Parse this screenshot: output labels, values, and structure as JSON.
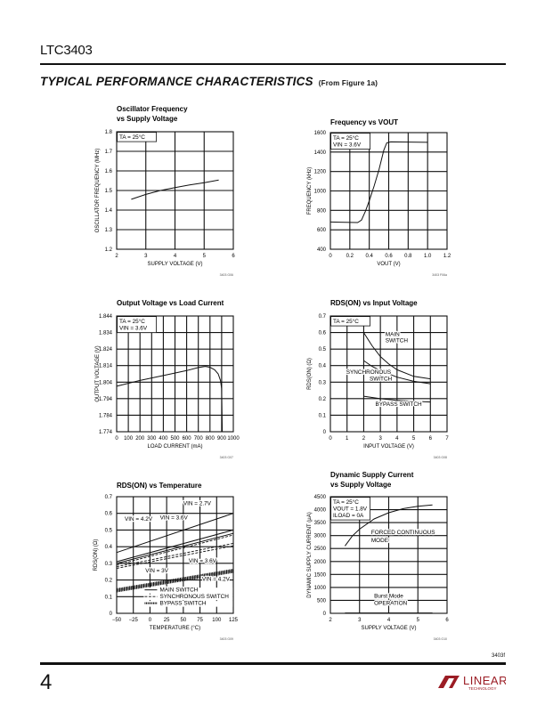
{
  "header": {
    "part": "LTC3403",
    "section_title": "TYPICAL PERFORMANCE CHARACTERISTICS",
    "section_note": "(From Figure 1a)"
  },
  "footer": {
    "page_number": "4",
    "doc_code": "3403f",
    "logo_text": "LINEAR TECHNOLOGY"
  },
  "colors": {
    "ink": "#111111",
    "logo": "#9b1c24"
  },
  "chart_data": [
    {
      "type": "line",
      "title": [
        {
          "text": "Oscillator Frequency"
        },
        {
          "text": "vs Supply Voltage"
        }
      ],
      "xlabel": {
        "text": "SUPPLY VOLTAGE (V)"
      },
      "ylabel": {
        "text": "OSCILLATOR FREQUENCY (MHz)"
      },
      "xlim": [
        2,
        6
      ],
      "ylim": [
        1.2,
        1.8
      ],
      "xticks": [
        "2",
        "3",
        "4",
        "5",
        "6"
      ],
      "yticks": [
        "1.2",
        "1.3",
        "1.4",
        "1.5",
        "1.6",
        "1.7",
        "1.8"
      ],
      "grid": true,
      "series": [
        {
          "x": [
            2.5,
            3,
            3.5,
            4,
            4.5,
            5,
            5.5
          ],
          "y": [
            1.455,
            1.48,
            1.5,
            1.515,
            1.528,
            1.54,
            1.553
          ],
          "style": "solid"
        }
      ],
      "annotations": [
        {
          "text": "TA = 25°C",
          "sub": "A"
        }
      ],
      "code": "3403 G06"
    },
    {
      "type": "line",
      "title": [
        {
          "text": "Frequency vs VOUT",
          "sub": "OUT"
        }
      ],
      "xlabel": {
        "text": "VOUT (V)",
        "sub": "OUT"
      },
      "ylabel": {
        "text": "FREQUENCY (kHz)"
      },
      "xlim": [
        0,
        1.2
      ],
      "ylim": [
        400,
        1600
      ],
      "xticks": [
        "0",
        "0.2",
        "0.4",
        "0.6",
        "0.8",
        "1.0",
        "1.2"
      ],
      "yticks": [
        "400",
        "600",
        "800",
        "1000",
        "1200",
        "1400",
        "1600"
      ],
      "grid": true,
      "series": [
        {
          "x": [
            0,
            0.28,
            0.32,
            0.36,
            0.4,
            0.45,
            0.5,
            0.55,
            0.58,
            0.62,
            1.0
          ],
          "y": [
            680,
            675,
            700,
            790,
            900,
            1050,
            1220,
            1420,
            1495,
            1505,
            1500
          ],
          "style": "solid"
        }
      ],
      "annotations": [
        {
          "text": "TA = 25°C",
          "sub": "A"
        },
        {
          "text": "VIN = 3.6V",
          "sub": "IN"
        }
      ],
      "code": "3403 F06a"
    },
    {
      "type": "line",
      "title": [
        {
          "text": "Output Voltage vs Load Current"
        }
      ],
      "xlabel": {
        "text": "LOAD CURRENT (mA)"
      },
      "ylabel": {
        "text": "OUTPUT VOLTAGE (V)"
      },
      "xlim": [
        0,
        1000
      ],
      "ylim": [
        1.774,
        1.844
      ],
      "xticks": [
        "0",
        "100",
        "200",
        "300",
        "400",
        "500",
        "600",
        "700",
        "800",
        "900",
        "1000"
      ],
      "yticks": [
        "1.774",
        "1.784",
        "1.794",
        "1.804",
        "1.814",
        "1.824",
        "1.834",
        "1.844"
      ],
      "grid": true,
      "series": [
        {
          "x": [
            0,
            200,
            400,
            600,
            700,
            760,
            800,
            840,
            870,
            890,
            900,
            905
          ],
          "y": [
            1.8015,
            1.805,
            1.808,
            1.811,
            1.8128,
            1.8135,
            1.813,
            1.8115,
            1.809,
            1.805,
            1.8,
            1.774
          ],
          "style": "solid"
        }
      ],
      "annotations": [
        {
          "text": "TA = 25°C",
          "sub": "A"
        },
        {
          "text": "VIN = 3.6V",
          "sub": "IN"
        }
      ],
      "code": "3403 G07"
    },
    {
      "type": "line",
      "title": [
        {
          "text": "RDS(ON) vs Input Voltage",
          "sub": "DS(ON)"
        }
      ],
      "xlabel": {
        "text": "INPUT VOLTAGE (V)"
      },
      "ylabel": {
        "text": "RDS(ON) (Ω)",
        "sub": "DS(ON)"
      },
      "xlim": [
        0,
        7
      ],
      "ylim": [
        0,
        0.7
      ],
      "xticks": [
        "0",
        "1",
        "2",
        "3",
        "4",
        "5",
        "6",
        "7"
      ],
      "yticks": [
        "0",
        "0.1",
        "0.2",
        "0.3",
        "0.4",
        "0.5",
        "0.6",
        "0.7"
      ],
      "grid": true,
      "series": [
        {
          "name": "MAIN SWITCH",
          "x": [
            2,
            2.5,
            3,
            3.5,
            4,
            5,
            6
          ],
          "y": [
            0.6,
            0.52,
            0.455,
            0.41,
            0.375,
            0.335,
            0.32
          ],
          "style": "solid"
        },
        {
          "name": "SYNCHRONOUS SWITCH",
          "x": [
            2,
            2.5,
            3,
            4,
            5,
            6
          ],
          "y": [
            0.43,
            0.395,
            0.37,
            0.33,
            0.305,
            0.29
          ],
          "style": "solid"
        },
        {
          "name": "BYPASS SWITCH",
          "x": [
            2,
            3,
            4,
            5,
            6
          ],
          "y": [
            0.215,
            0.2,
            0.19,
            0.184,
            0.18
          ],
          "style": "solid"
        }
      ],
      "annotations": [
        {
          "text": "TA = 25°C",
          "sub": "A"
        },
        {
          "text": "MAIN"
        },
        {
          "text": "SWITCH"
        },
        {
          "text": "SYNCHRONOUS"
        },
        {
          "text": "SWITCH"
        },
        {
          "text": "BYPASS SWITCH"
        }
      ],
      "code": "3403 G08"
    },
    {
      "type": "line",
      "title": [
        {
          "text": "RDS(ON) vs Temperature",
          "sub": "DS(ON)"
        }
      ],
      "xlabel": {
        "text": "TEMPERATURE (°C)"
      },
      "ylabel": {
        "text": "RDS(ON) (Ω)",
        "sub": "DS(ON)"
      },
      "xlim": [
        -50,
        125
      ],
      "ylim": [
        0,
        0.7
      ],
      "xticks": [
        "−50",
        "−25",
        "0",
        "25",
        "50",
        "75",
        "100",
        "125"
      ],
      "yticks": [
        "0",
        "0.1",
        "0.2",
        "0.3",
        "0.4",
        "0.5",
        "0.6",
        "0.7"
      ],
      "grid": true,
      "series": [
        {
          "name": "MAIN SWITCH, VIN = 2.7V",
          "x": [
            -50,
            125
          ],
          "y": [
            0.365,
            0.6
          ],
          "style": "solid"
        },
        {
          "name": "MAIN SWITCH, VIN = 3.6V",
          "x": [
            -50,
            125
          ],
          "y": [
            0.31,
            0.5
          ],
          "style": "solid"
        },
        {
          "name": "MAIN SWITCH, VIN = 4.2V",
          "x": [
            -50,
            125
          ],
          "y": [
            0.3,
            0.48
          ],
          "style": "solid"
        },
        {
          "name": "SYNCHRONOUS SWITCH, VIN = 2.7V",
          "x": [
            -50,
            125
          ],
          "y": [
            0.29,
            0.47
          ],
          "style": "dashed"
        },
        {
          "name": "SYNCHRONOUS SWITCH, VIN = 3.6V",
          "x": [
            -50,
            125
          ],
          "y": [
            0.28,
            0.42
          ],
          "style": "dashed"
        },
        {
          "name": "SYNCHRONOUS SWITCH, VIN = 4.2V",
          "x": [
            -50,
            125
          ],
          "y": [
            0.27,
            0.405
          ],
          "style": "dashed"
        },
        {
          "name": "BYPASS SWITCH, VIN = 3V",
          "x": [
            -50,
            125
          ],
          "y": [
            0.145,
            0.262
          ],
          "style": "dotted"
        },
        {
          "name": "BYPASS SWITCH, VIN = 3.6V",
          "x": [
            -50,
            125
          ],
          "y": [
            0.138,
            0.255
          ],
          "style": "dotted"
        },
        {
          "name": "BYPASS SWITCH, VIN = 4.2V",
          "x": [
            -50,
            125
          ],
          "y": [
            0.131,
            0.248
          ],
          "style": "dotted"
        }
      ],
      "annotations": [
        {
          "text": "VIN = 2.7V",
          "sub": "IN"
        },
        {
          "text": "VIN = 4.2V",
          "sub": "IN"
        },
        {
          "text": "VIN = 3.6V",
          "sub": "IN"
        },
        {
          "text": "VIN = 3.6V",
          "sub": "IN"
        },
        {
          "text": "VIN = 3V",
          "sub": "IN"
        },
        {
          "text": "VIN = 4.2V",
          "sub": "IN"
        }
      ],
      "legend": {
        "position": "bottom-right",
        "entries": [
          {
            "label": "MAIN SWITCH",
            "style": "solid"
          },
          {
            "label": "SYNCHRONOUS SWITCH",
            "style": "dashed"
          },
          {
            "label": "BYPASS SWITCH",
            "style": "dotted"
          }
        ]
      },
      "code": "3403 G09"
    },
    {
      "type": "line",
      "title": [
        {
          "text": "Dynamic Supply Current"
        },
        {
          "text": "vs Supply Voltage"
        }
      ],
      "xlabel": {
        "text": "SUPPLY VOLTAGE (V)"
      },
      "ylabel": {
        "text": "DYNAMIC SUPPLY CURRENT (µA)"
      },
      "xlim": [
        2,
        6
      ],
      "ylim": [
        0,
        4500
      ],
      "xticks": [
        "2",
        "3",
        "4",
        "5",
        "6"
      ],
      "yticks": [
        "0",
        "500",
        "1000",
        "1500",
        "2000",
        "2500",
        "3000",
        "3500",
        "4000",
        "4500"
      ],
      "grid": true,
      "series": [
        {
          "name": "FORCED CONTINUOUS MODE",
          "x": [
            2.5,
            2.75,
            3,
            3.5,
            4,
            4.5,
            5,
            5.5
          ],
          "y": [
            2600,
            2980,
            3250,
            3640,
            3880,
            4040,
            4130,
            4180
          ],
          "style": "solid"
        },
        {
          "name": "Burst Mode OPERATION",
          "x": [
            2.5,
            5.5
          ],
          "y": [
            15,
            15
          ],
          "style": "solid"
        }
      ],
      "annotations": [
        {
          "text": "TA = 25°C",
          "sub": "A"
        },
        {
          "text": "VOUT = 1.8V",
          "sub": "OUT"
        },
        {
          "text": "ILOAD = 0A",
          "sub": "LOAD"
        },
        {
          "text": "FORCED CONTINUOUS"
        },
        {
          "text": "MODE"
        },
        {
          "text": "Burst Mode"
        },
        {
          "text": "OPERATION"
        }
      ],
      "code": "3403 G10"
    }
  ]
}
